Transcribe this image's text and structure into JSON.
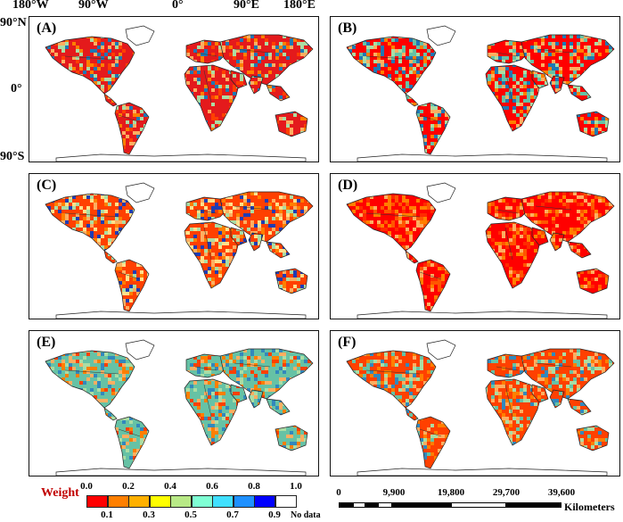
{
  "axes": {
    "lon_labels": [
      "180°W",
      "90°W",
      "0°",
      "90°E",
      "180°E"
    ],
    "lat_labels": [
      "90°N",
      "0°",
      "90°S"
    ]
  },
  "panels": [
    {
      "label": "(A)",
      "palette": [
        "#e41a1c",
        "#ff7f00",
        "#ff4000",
        "#fdae61",
        "#abdda4",
        "#1f78b4",
        "#e41a1c"
      ]
    },
    {
      "label": "(B)",
      "palette": [
        "#ff0000",
        "#fdae61",
        "#abdda4",
        "#66c2a5",
        "#1f78b4",
        "#ff7f00"
      ]
    },
    {
      "label": "(C)",
      "palette": [
        "#ff4000",
        "#ff7f00",
        "#fdae61",
        "#fee08b",
        "#abdda4",
        "#1f3cb4"
      ]
    },
    {
      "label": "(D)",
      "palette": [
        "#ff0000",
        "#ff2a00",
        "#ff5500",
        "#ff7f00",
        "#fdae61"
      ]
    },
    {
      "label": "(E)",
      "palette": [
        "#66c2a5",
        "#3288bd",
        "#abdda4",
        "#ff7f00",
        "#fdae61",
        "#ff4000"
      ]
    },
    {
      "label": "(F)",
      "palette": [
        "#ff4000",
        "#ff7f00",
        "#66c2a5",
        "#abdda4",
        "#fdae61",
        "#3288bd"
      ]
    }
  ],
  "legend": {
    "title": "Weight",
    "top_labels": [
      "0.0",
      "0.2",
      "0.4",
      "0.6",
      "0.8",
      "1.0"
    ],
    "bottom_labels": [
      "0.1",
      "0.3",
      "0.5",
      "0.7",
      "0.9"
    ],
    "no_data_label": "No data",
    "colors": [
      "#ff0000",
      "#ff7f00",
      "#ffb000",
      "#ffff00",
      "#b8e986",
      "#7fffd4",
      "#40e0ff",
      "#1e90ff",
      "#0000ff",
      "#ffffff"
    ]
  },
  "scalebar": {
    "labels": [
      "0",
      "9,900",
      "19,800",
      "29,700",
      "39,600"
    ],
    "unit": "Kilometers"
  }
}
